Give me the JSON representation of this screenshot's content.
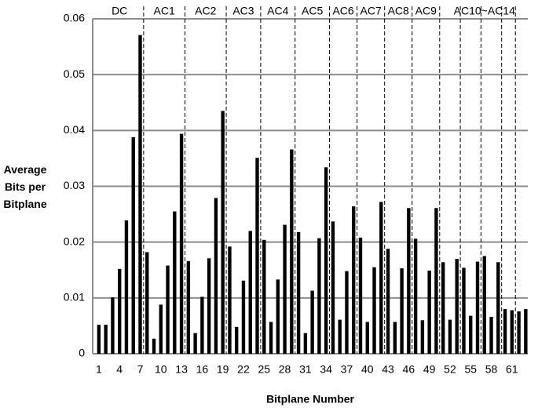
{
  "chart_data": {
    "type": "bar",
    "x_label": "Bitplane Number",
    "y_label": "Average Bits per Bitplane",
    "x": [
      1,
      2,
      3,
      4,
      5,
      6,
      7,
      8,
      9,
      10,
      11,
      12,
      13,
      14,
      15,
      16,
      17,
      18,
      19,
      20,
      21,
      22,
      23,
      24,
      25,
      26,
      27,
      28,
      29,
      30,
      31,
      32,
      33,
      34,
      35,
      36,
      37,
      38,
      39,
      40,
      41,
      42,
      43,
      44,
      45,
      46,
      47,
      48,
      49,
      50,
      51,
      52,
      53,
      54,
      55,
      56,
      57,
      58,
      59,
      60,
      61,
      62,
      63
    ],
    "values": [
      0.0052,
      0.0052,
      0.0101,
      0.0152,
      0.0239,
      0.0388,
      0.0571,
      0.0182,
      0.0027,
      0.0088,
      0.0158,
      0.0255,
      0.0394,
      0.0166,
      0.0037,
      0.0102,
      0.0171,
      0.0279,
      0.0435,
      0.0192,
      0.0048,
      0.0131,
      0.022,
      0.0351,
      0.0204,
      0.0057,
      0.0133,
      0.0231,
      0.0366,
      0.0218,
      0.0037,
      0.0113,
      0.0207,
      0.0334,
      0.0237,
      0.0061,
      0.0148,
      0.0264,
      0.0208,
      0.0057,
      0.0155,
      0.0272,
      0.0188,
      0.0057,
      0.0153,
      0.0261,
      0.0206,
      0.006,
      0.0149,
      0.0261,
      0.0164,
      0.0061,
      0.017,
      0.0154,
      0.0068,
      0.0165,
      0.0175,
      0.0066,
      0.0164,
      0.008,
      0.0078,
      0.0076,
      0.008
    ],
    "color": "#000000",
    "xlim": [
      0.1,
      63.3
    ],
    "xticks": [
      1,
      4,
      7,
      10,
      13,
      16,
      19,
      22,
      25,
      28,
      31,
      34,
      37,
      40,
      43,
      46,
      49,
      52,
      55,
      58,
      61
    ],
    "ylim": [
      0,
      0.06
    ],
    "yticks": [
      0,
      0.01,
      0.02,
      0.03,
      0.04,
      0.05,
      0.06
    ],
    "grid": true,
    "groups": [
      {
        "label": "DC",
        "start": 1,
        "end": 7
      },
      {
        "label": "AC1",
        "start": 8,
        "end": 13
      },
      {
        "label": "AC2",
        "start": 14,
        "end": 19
      },
      {
        "label": "AC3",
        "start": 20,
        "end": 24
      },
      {
        "label": "AC4",
        "start": 25,
        "end": 29
      },
      {
        "label": "AC5",
        "start": 30,
        "end": 34
      },
      {
        "label": "AC6",
        "start": 35,
        "end": 38
      },
      {
        "label": "AC7",
        "start": 39,
        "end": 42
      },
      {
        "label": "AC8",
        "start": 43,
        "end": 46
      },
      {
        "label": "AC9",
        "start": 47,
        "end": 50
      },
      {
        "label": "AC10~AC14",
        "start": 51,
        "end": 63
      }
    ],
    "dividers": [
      7.5,
      13.5,
      19.5,
      24.5,
      29.5,
      34.5,
      38.5,
      42.5,
      46.5,
      50.5,
      53.5,
      56.5,
      59.5,
      61.5
    ]
  }
}
